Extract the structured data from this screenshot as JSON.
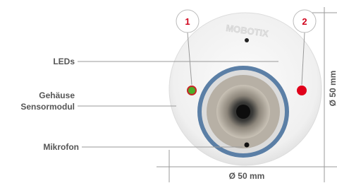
{
  "callouts": [
    {
      "number": "1"
    },
    {
      "number": "2"
    }
  ],
  "labels": {
    "leds": "LEDs",
    "housing": [
      "Gehäuse",
      "Sensormodul"
    ],
    "microphone": "Mikrofon"
  },
  "brand": "MOBOTIX",
  "dimensions": {
    "width": "Ø 50 mm",
    "height": "Ø 50 mm"
  }
}
